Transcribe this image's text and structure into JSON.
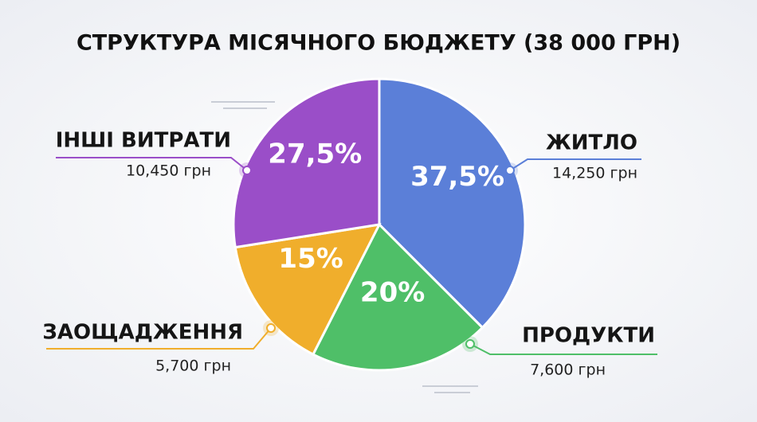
{
  "chart_data": {
    "type": "pie",
    "title": "СТРУКТУРА МІСЯЧНОГО БЮДЖЕТУ (38 000 ГРН)",
    "categories": [
      "ЖИТЛО",
      "ПРОДУКТИ",
      "ЗАОЩАДЖЕННЯ",
      "ІНШІ ВИТРАТИ"
    ],
    "values": [
      37.5,
      20,
      15,
      27.5
    ],
    "value_labels": [
      "37,5%",
      "20%",
      "15%",
      "27,5%"
    ],
    "amounts": [
      "14,250 грн",
      "7,600 грн",
      "5,700 грн",
      "10,450 грн"
    ],
    "colors": [
      "#5b7fd8",
      "#4fbf68",
      "#f0ae2c",
      "#9a4ec8"
    ]
  }
}
